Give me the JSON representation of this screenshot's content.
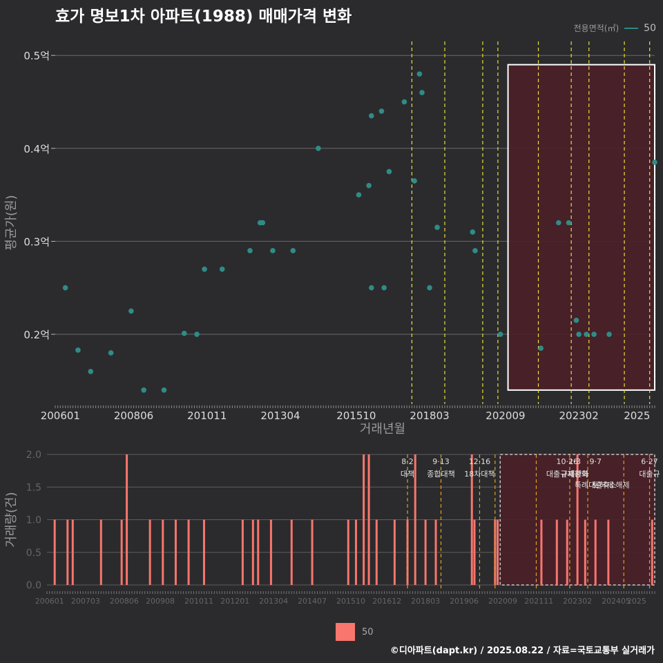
{
  "title": "효가 명보1차 아파트(1988) 매매가격 변화",
  "legend_top": {
    "label": "전용면적(㎡)",
    "value": "50"
  },
  "legend_bottom": {
    "value": "50"
  },
  "footer": "©디아파트(dapt.kr) / 2025.08.22 / 자료=국토교통부 실거래가",
  "colors": {
    "background": "#2b2b2d",
    "point": "#2f8c88",
    "bar": "#f8766d",
    "policy_line": "#e8e03a",
    "volume_policy_line": "#e0a020",
    "highlight_fill": "#4a1f28"
  },
  "chart_data": [
    {
      "type": "scatter",
      "title": "효가 명보1차 아파트(1988) 매매가격 변화",
      "xlabel": "거래년월",
      "ylabel": "평균가(원)",
      "x_ticks": [
        "200601",
        "200806",
        "201011",
        "201304",
        "201510",
        "201803",
        "202009",
        "202302",
        "2025"
      ],
      "y_ticks": [
        {
          "v": 0.2,
          "label": "0.2억"
        },
        {
          "v": 0.3,
          "label": "0.3억"
        },
        {
          "v": 0.4,
          "label": "0.4억"
        },
        {
          "v": 0.5,
          "label": "0.5억"
        }
      ],
      "ylim": [
        0.125,
        0.515
      ],
      "xlim": [
        "2005-11",
        "2025-08"
      ],
      "series": [
        {
          "name": "50",
          "points": [
            {
              "x": "2006-03",
              "y": 0.25
            },
            {
              "x": "2006-08",
              "y": 0.183
            },
            {
              "x": "2007-01",
              "y": 0.16
            },
            {
              "x": "2007-09",
              "y": 0.18
            },
            {
              "x": "2008-05",
              "y": 0.225
            },
            {
              "x": "2008-10",
              "y": 0.14
            },
            {
              "x": "2009-06",
              "y": 0.14
            },
            {
              "x": "2010-02",
              "y": 0.201
            },
            {
              "x": "2010-07",
              "y": 0.2
            },
            {
              "x": "2010-10",
              "y": 0.27
            },
            {
              "x": "2011-05",
              "y": 0.27
            },
            {
              "x": "2012-04",
              "y": 0.29
            },
            {
              "x": "2012-08",
              "y": 0.32
            },
            {
              "x": "2012-09",
              "y": 0.32
            },
            {
              "x": "2013-01",
              "y": 0.29
            },
            {
              "x": "2013-09",
              "y": 0.29
            },
            {
              "x": "2014-07",
              "y": 0.4
            },
            {
              "x": "2015-11",
              "y": 0.35
            },
            {
              "x": "2016-03",
              "y": 0.36
            },
            {
              "x": "2016-04",
              "y": 0.435
            },
            {
              "x": "2016-04",
              "y": 0.25
            },
            {
              "x": "2016-08",
              "y": 0.44
            },
            {
              "x": "2016-09",
              "y": 0.25
            },
            {
              "x": "2016-11",
              "y": 0.375
            },
            {
              "x": "2017-05",
              "y": 0.45
            },
            {
              "x": "2017-09",
              "y": 0.365
            },
            {
              "x": "2017-11",
              "y": 0.48
            },
            {
              "x": "2017-12",
              "y": 0.46
            },
            {
              "x": "2018-03",
              "y": 0.25
            },
            {
              "x": "2018-06",
              "y": 0.315
            },
            {
              "x": "2019-08",
              "y": 0.31
            },
            {
              "x": "2019-09",
              "y": 0.29
            },
            {
              "x": "2020-07",
              "y": 0.2
            },
            {
              "x": "2021-11",
              "y": 0.185
            },
            {
              "x": "2022-06",
              "y": 0.32
            },
            {
              "x": "2022-10",
              "y": 0.32
            },
            {
              "x": "2023-01",
              "y": 0.215
            },
            {
              "x": "2023-02",
              "y": 0.2
            },
            {
              "x": "2023-05",
              "y": 0.2
            },
            {
              "x": "2023-08",
              "y": 0.2
            },
            {
              "x": "2024-02",
              "y": 0.2
            },
            {
              "x": "2025-08",
              "y": 0.385
            }
          ]
        }
      ],
      "policy_lines": [
        "2017-08",
        "2018-09",
        "2019-12",
        "2020-06",
        "2021-10",
        "2022-11",
        "2023-06",
        "2024-08",
        "2025-06"
      ],
      "highlight": {
        "x0": "2020-10",
        "x1": "2025-08",
        "y0": 0.14,
        "y1": 0.49
      },
      "grid": true
    },
    {
      "type": "bar",
      "ylabel": "거래량(건)",
      "ylim": [
        0,
        2
      ],
      "y_ticks": [
        {
          "v": 0,
          "label": "0.0"
        },
        {
          "v": 0.5,
          "label": "0.5"
        },
        {
          "v": 1,
          "label": "1.0"
        },
        {
          "v": 1.5,
          "label": "1.5"
        },
        {
          "v": 2,
          "label": "2.0"
        }
      ],
      "x_ticks": [
        "200601",
        "200703",
        "200806",
        "200908",
        "201011",
        "201201",
        "201304",
        "201407",
        "201510",
        "201612",
        "201803",
        "201906",
        "202009",
        "202111",
        "202302",
        "202405",
        "2025"
      ],
      "bars": [
        {
          "x": "2006-03",
          "v": 1
        },
        {
          "x": "2006-08",
          "v": 1
        },
        {
          "x": "2006-10",
          "v": 1
        },
        {
          "x": "2007-09",
          "v": 1
        },
        {
          "x": "2008-05",
          "v": 1
        },
        {
          "x": "2008-07",
          "v": 2
        },
        {
          "x": "2009-04",
          "v": 1
        },
        {
          "x": "2009-09",
          "v": 1
        },
        {
          "x": "2010-02",
          "v": 1
        },
        {
          "x": "2010-07",
          "v": 1
        },
        {
          "x": "2011-01",
          "v": 1
        },
        {
          "x": "2012-04",
          "v": 1
        },
        {
          "x": "2012-08",
          "v": 1
        },
        {
          "x": "2012-10",
          "v": 1
        },
        {
          "x": "2013-03",
          "v": 1
        },
        {
          "x": "2013-11",
          "v": 1
        },
        {
          "x": "2014-07",
          "v": 1
        },
        {
          "x": "2015-09",
          "v": 1
        },
        {
          "x": "2015-12",
          "v": 1
        },
        {
          "x": "2016-03",
          "v": 2
        },
        {
          "x": "2016-05",
          "v": 2
        },
        {
          "x": "2016-08",
          "v": 1
        },
        {
          "x": "2017-03",
          "v": 1
        },
        {
          "x": "2017-08",
          "v": 1
        },
        {
          "x": "2017-11",
          "v": 2
        },
        {
          "x": "2018-03",
          "v": 1
        },
        {
          "x": "2018-07",
          "v": 1
        },
        {
          "x": "2019-09",
          "v": 2
        },
        {
          "x": "2019-10",
          "v": 1
        },
        {
          "x": "2020-06",
          "v": 1
        },
        {
          "x": "2020-07",
          "v": 1
        },
        {
          "x": "2021-12",
          "v": 1
        },
        {
          "x": "2022-06",
          "v": 1
        },
        {
          "x": "2022-10",
          "v": 1
        },
        {
          "x": "2023-02",
          "v": 2
        },
        {
          "x": "2023-05",
          "v": 1
        },
        {
          "x": "2023-09",
          "v": 1
        },
        {
          "x": "2024-02",
          "v": 1
        },
        {
          "x": "2025-07",
          "v": 1
        }
      ],
      "policy_lines": [
        "2017-08",
        "2018-09",
        "2019-12",
        "2020-06",
        "2021-10",
        "2022-11",
        "2023-06",
        "2024-08",
        "2025-06"
      ],
      "annotations": [
        {
          "x": "2017-08",
          "date": "8·2",
          "label": "대책"
        },
        {
          "x": "2018-09",
          "date": "9·13",
          "label": "종합대책"
        },
        {
          "x": "2019-12",
          "date": "12·16",
          "label": "18차대책"
        },
        {
          "x": "2022-10",
          "date": "10·26",
          "label": "대출규제강화"
        },
        {
          "x": "2023-01",
          "date": "1·3",
          "label": "규제완화"
        },
        {
          "x": "2023-09",
          "date": "9·7",
          "label": "특례대출축소"
        },
        {
          "x": "2024-03",
          "date": "",
          "label": "토허제 해제"
        },
        {
          "x": "2025-06",
          "date": "6·27",
          "label": "대출규"
        }
      ],
      "highlight": {
        "x0": "2020-08",
        "x1": "2025-08"
      },
      "grid": true
    }
  ]
}
